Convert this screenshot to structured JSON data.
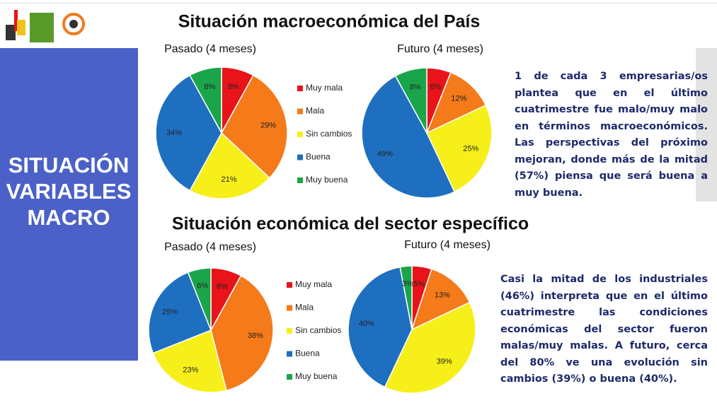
{
  "sidebar_title": [
    "SITUACIÓN",
    "VARIABLES",
    "MACRO"
  ],
  "sections": [
    {
      "title": "Situación macroeconómica del País",
      "text": "1 de cada 3 empresarias/os plantea que en el último cuatrimestre fue malo/muy malo en términos macroeconómicos. Las perspectivas del próximo mejoran, donde más de la mitad (57%) piensa que será buena a muy buena."
    },
    {
      "title": "Situación económica del sector específico",
      "text": "Casi la mitad de los industriales (46%) interpreta que en el último cuatrimestre las condiciones económicas del sector fueron malas/muy malas. A futuro, cerca del 80% ve una evolución sin cambios (39%) o buena (40%)."
    }
  ],
  "chart_data": [
    {
      "type": "pie",
      "title": "Pasado (4 meses)",
      "categories": [
        "Muy mala",
        "Mala",
        "Sin cambios",
        "Buena",
        "Muy buena"
      ],
      "values": [
        8,
        29,
        21,
        34,
        8
      ],
      "value_labels": [
        "8%",
        "29%",
        "21%",
        "34%",
        "8%"
      ],
      "colors": [
        "#e8141a",
        "#f47a1a",
        "#f7ef1a",
        "#1f6fc0",
        "#1aa54a"
      ],
      "legend": true
    },
    {
      "type": "pie",
      "title": "Futuro (4 meses)",
      "categories": [
        "Muy mala",
        "Mala",
        "Sin cambios",
        "Buena",
        "Muy buena"
      ],
      "values": [
        6,
        12,
        25,
        49,
        8
      ],
      "value_labels": [
        "6%",
        "12%",
        "25%",
        "49%",
        "8%"
      ],
      "colors": [
        "#e8141a",
        "#f47a1a",
        "#f7ef1a",
        "#1f6fc0",
        "#1aa54a"
      ],
      "legend": false
    },
    {
      "type": "pie",
      "title": "Pasado (4 meses)",
      "categories": [
        "Muy mala",
        "Mala",
        "Sin cambios",
        "Buena",
        "Muy buena"
      ],
      "values": [
        8,
        38,
        23,
        25,
        6
      ],
      "value_labels": [
        "8%",
        "38%",
        "23%",
        "25%",
        "6%"
      ],
      "colors": [
        "#e8141a",
        "#f47a1a",
        "#f7ef1a",
        "#1f6fc0",
        "#1aa54a"
      ],
      "legend": true
    },
    {
      "type": "pie",
      "title": "Futuro (4 meses)",
      "categories": [
        "Muy mala",
        "Mala",
        "Sin cambios",
        "Buena",
        "Muy buena"
      ],
      "values": [
        5,
        13,
        39,
        40,
        3
      ],
      "value_labels": [
        "5%",
        "13%",
        "39%",
        "40%",
        "3%"
      ],
      "colors": [
        "#e8141a",
        "#f47a1a",
        "#f7ef1a",
        "#1f6fc0",
        "#1aa54a"
      ],
      "legend": false
    }
  ]
}
